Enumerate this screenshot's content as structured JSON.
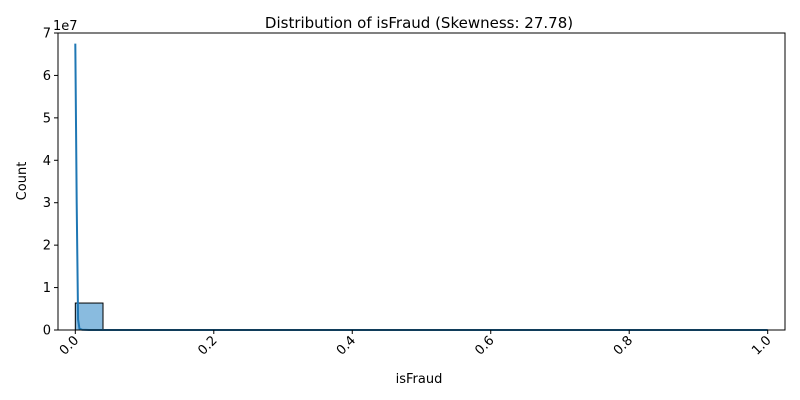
{
  "chart_data": {
    "type": "bar",
    "title": "Distribution of isFraud (Skewness: 27.78)",
    "xlabel": "isFraud",
    "ylabel": "Count",
    "x_ticks": [
      "0.0",
      "0.2",
      "0.4",
      "0.6",
      "0.8",
      "1.0"
    ],
    "y_ticks": [
      "0",
      "1",
      "2",
      "3",
      "4",
      "5",
      "6",
      "7"
    ],
    "y_offset_label": "1e7",
    "xlim": [
      -0.025,
      1.025
    ],
    "ylim": [
      0,
      70000000
    ],
    "tick_rotation_deg": -45,
    "bins": {
      "edges": [
        0,
        0.04,
        0.08,
        0.12,
        0.16,
        0.2,
        0.24,
        0.28,
        0.32,
        0.36,
        0.4,
        0.44,
        0.48,
        0.52,
        0.56,
        0.6,
        0.64,
        0.68,
        0.72,
        0.76,
        0.8,
        0.84,
        0.88,
        0.92,
        0.96,
        1.0
      ],
      "counts": [
        6354407,
        0,
        0,
        0,
        0,
        0,
        0,
        0,
        0,
        0,
        0,
        0,
        0,
        0,
        0,
        0,
        0,
        0,
        0,
        0,
        0,
        0,
        0,
        0,
        8213
      ]
    },
    "kde": {
      "x": [
        0.0,
        0.002,
        0.004,
        0.006,
        0.01,
        0.02,
        0.05,
        0.2,
        0.5,
        0.8,
        0.98,
        1.0
      ],
      "y": [
        67500000,
        30000000,
        2500000,
        300000,
        50000,
        10000,
        0,
        0,
        0,
        0,
        2000,
        5000
      ]
    },
    "colors": {
      "bar_fill": "#89bbdf",
      "bar_edge": "#000000",
      "kde_line": "#1f77b4",
      "axes": "#000000"
    },
    "grid": false
  }
}
